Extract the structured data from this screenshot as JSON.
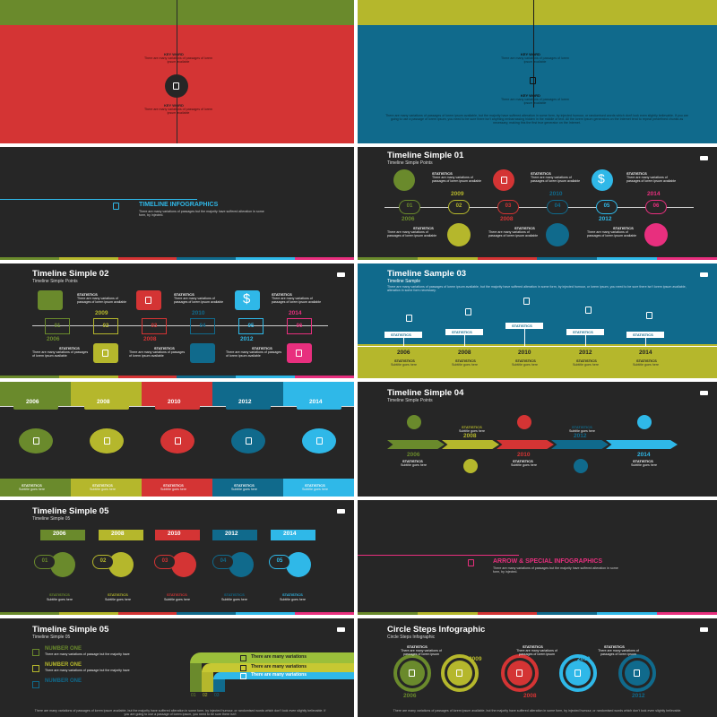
{
  "palette": {
    "green": "#6a8a2c",
    "olive": "#b5b72c",
    "red": "#d43434",
    "teal": "#106a8c",
    "blue": "#2fb8e8",
    "pink": "#e82f7e",
    "dark": "#262626"
  },
  "icons": [
    "document-icon",
    "dollar-icon"
  ],
  "top_left": {
    "keyword_1": "KEY WORD",
    "desc_1": "There are many variations of passages of lorem ipsum available",
    "keyword_2": "KEY WORD",
    "desc_2": "There are many variations of passages of lorem ipsum available"
  },
  "top_right": {
    "keyword_1": "KEY WORD",
    "desc_1": "There are many variations of passages of lorem ipsum available",
    "keyword_2": "KEY WORD",
    "desc_2": "There are many variations of passages of lorem ipsum available",
    "paragraph": "There are many variations of passages of lorem ipsum available, but the majority have suffered alteration in some form, by injected humour, or randomised words which don't look even slightly believable. If you are going to use a passage of lorem ipsum, you need to be sure there isn't anything embarrassing hidden in the middle of text. All the lorem ipsum generators on the Internet tend to repeat predefined chunks as necessary, making this the first true generator on the Internet."
  },
  "section_timeline": {
    "title": "TIMELINE INFOGRAPHICS",
    "desc": "There are many variations of passages but the majority have suffered alteration in some form, by injected."
  },
  "timeline_01": {
    "title": "Timeline Simple 01",
    "subtitle": "Timeline Simple Points",
    "numbers": [
      "01",
      "02",
      "03",
      "04",
      "05",
      "06"
    ],
    "years": [
      "2006",
      "2009",
      "2008",
      "2010",
      "2012",
      "2014"
    ],
    "stat_label": "STATISTICS",
    "stat_desc": "There are many variations of passages of lorem ipsum available"
  },
  "timeline_02": {
    "title": "Timeline Simple 02",
    "subtitle": "Timeline Simple Points",
    "numbers": [
      "01",
      "02",
      "03",
      "04",
      "05",
      "06"
    ],
    "years": [
      "2006",
      "2009",
      "2008",
      "2010",
      "2012",
      "2014"
    ],
    "stat_label": "STATISTICS",
    "stat_desc": "There are many variations of passages of lorem ipsum available"
  },
  "sample_03": {
    "title": "Timeline Sample 03",
    "subtitle": "Timeline Sample",
    "paragraph": "There are many variations of passages of lorem ipsum available, but the majority have suffered alteration in some form, by injected humour, or lorem ipsum, you need to be sure there isn't lorem ipsum available, alteration in some form necessary.",
    "stat_label": "STATISTICS",
    "years": [
      "2006",
      "2008",
      "2010",
      "2012",
      "2014"
    ],
    "sub": "Subtitle goes here"
  },
  "columns": {
    "years": [
      "2006",
      "2008",
      "2010",
      "2012",
      "2014"
    ],
    "stat_label": "STATISTICS",
    "sub": "Subtitle goes here"
  },
  "timeline_04": {
    "title": "Timeline Simple 04",
    "subtitle": "Timeline Simple Points",
    "years": [
      "2006",
      "2008",
      "2010",
      "2012",
      "2014"
    ],
    "stat_label": "STATISTICS",
    "sub": "Subtitle goes here"
  },
  "timeline_05": {
    "title": "Timeline Simple 05",
    "subtitle": "Timeline Simple 05",
    "years": [
      "2006",
      "2008",
      "2010",
      "2012",
      "2014"
    ],
    "numbers": [
      "01",
      "02",
      "03",
      "04",
      "05"
    ],
    "stat_label": "STATISTICS",
    "sub": "Subtitle goes here"
  },
  "section_arrow": {
    "title": "ARROW & SPECIAL INFOGRAPHICS",
    "desc": "There are many variations of passages but the majority have suffered alteration in some form, by injected."
  },
  "timeline_05b": {
    "title": "Timeline Simple 05",
    "subtitle": "Timeline Simple 05",
    "labels": [
      "NUMBER ONE",
      "NUMBER ONE",
      "NUMBER ONE"
    ],
    "desc": "There are many variations of passage but the majority have",
    "bars": [
      "There are many variations",
      "There are many variations",
      "There are many variations"
    ],
    "numbers": [
      "01",
      "02",
      "03"
    ],
    "paragraph": "There are many variations of passages of lorem ipsum available, but the majority have suffered alteration in some form, by injected humour, or randomised words which don't look even slightly believable. If you are going to use a passage of lorem ipsum, you need to be sure there isn't"
  },
  "circle_steps": {
    "title": "Circle Steps Infographic",
    "subtitle": "Circle Steps Infographic",
    "stat_label": "STATISTICS",
    "stat_desc": "There are many variations of passages of lorem ipsum",
    "years": [
      "2006",
      "2009",
      "2008",
      "2010",
      "2012"
    ],
    "paragraph": "There are many variations of passages of lorem ipsum available, but the majority have suffered alteration in some form, by injected humour, or randomised words which don't look even slightly believable."
  }
}
